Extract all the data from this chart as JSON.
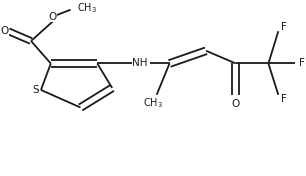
{
  "background": "#ffffff",
  "line_color": "#1a1a1a",
  "line_width": 1.3,
  "font_size": 7.5,
  "figsize": [
    3.06,
    1.76
  ],
  "dpi": 100,
  "xlim": [
    0,
    306
  ],
  "ylim": [
    0,
    176
  ]
}
